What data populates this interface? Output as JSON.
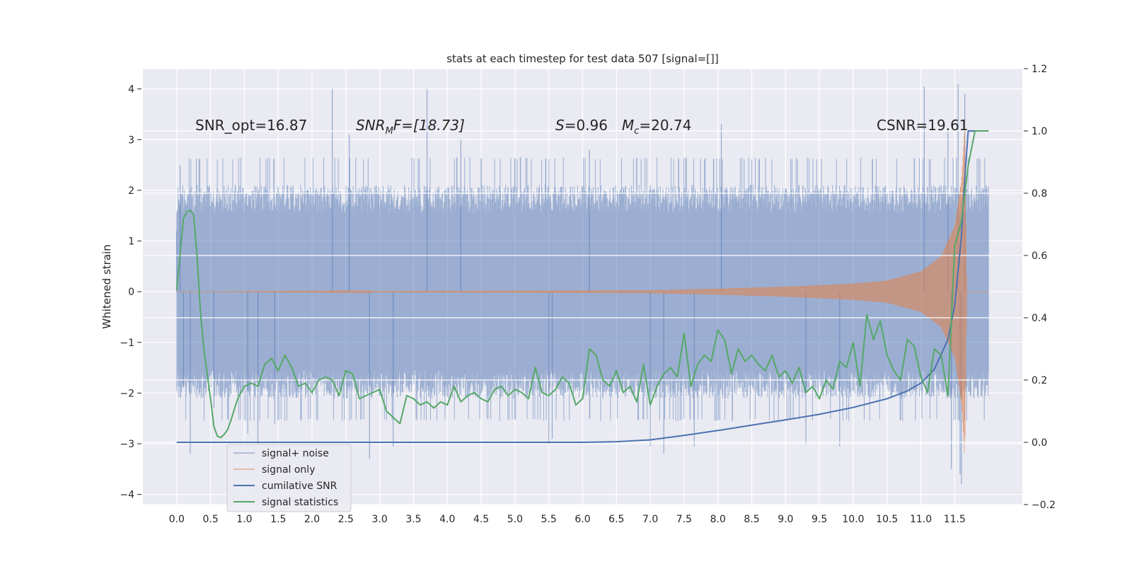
{
  "chart_data": {
    "type": "line",
    "title": "stats at each timestep for test data 507 [signal=[]]",
    "xlabel": "",
    "ylabel": "Whitened strain",
    "y2label": "",
    "xlim": [
      -0.5,
      12.5
    ],
    "ylim": [
      -4.2,
      4.4
    ],
    "y2lim": [
      -0.2,
      1.2
    ],
    "x_ticks": [
      "0.0",
      "0.5",
      "1.0",
      "1.5",
      "2.0",
      "2.5",
      "3.0",
      "3.5",
      "4.0",
      "4.5",
      "5.0",
      "5.5",
      "6.0",
      "6.5",
      "7.0",
      "7.5",
      "8.0",
      "8.5",
      "9.0",
      "9.5",
      "10.0",
      "10.5",
      "11.0",
      "11.5"
    ],
    "y_ticks": [
      "−4",
      "−3",
      "−2",
      "−1",
      "0",
      "1",
      "2",
      "3",
      "4"
    ],
    "y2_ticks": [
      "−0.2",
      "0.0",
      "0.2",
      "0.4",
      "0.6",
      "0.8",
      "1.0",
      "1.2"
    ],
    "grid": true,
    "legend_position": "lower-left",
    "annotations": {
      "snr_opt": "SNR_opt=16.87",
      "snr_mf_sym": "SNR",
      "snr_mf_sub": "M",
      "snr_mf_rest": "F=[18.73]",
      "s_sym": "S",
      "s_val": "=0.96",
      "mc_sym": "M",
      "mc_sub": "c",
      "mc_val": "=20.74",
      "csnr": "CSNR=19.61"
    },
    "series": [
      {
        "name": "signal+ noise",
        "axis": "left",
        "color": "#4c72b0",
        "t_range": [
          0.0,
          12.0
        ],
        "envelope_mean": 1.85,
        "envelope_spread": 0.3,
        "spikes": [
          {
            "x": 0.0,
            "y": 1.2
          },
          {
            "x": 0.05,
            "y": 2.5
          },
          {
            "x": 0.1,
            "y": -1.9
          },
          {
            "x": 0.2,
            "y": -3.2
          },
          {
            "x": 0.55,
            "y": -2.3
          },
          {
            "x": 1.05,
            "y": -2.8
          },
          {
            "x": 1.2,
            "y": -3.0
          },
          {
            "x": 1.45,
            "y": -2.6
          },
          {
            "x": 2.3,
            "y": 4.0
          },
          {
            "x": 2.55,
            "y": 3.1
          },
          {
            "x": 2.85,
            "y": -3.3
          },
          {
            "x": 3.2,
            "y": -3.05
          },
          {
            "x": 3.7,
            "y": 4.0
          },
          {
            "x": 4.2,
            "y": 3.0
          },
          {
            "x": 5.5,
            "y": -3.0
          },
          {
            "x": 5.55,
            "y": -2.9
          },
          {
            "x": 6.1,
            "y": 2.8
          },
          {
            "x": 7.0,
            "y": -3.05
          },
          {
            "x": 7.2,
            "y": -3.2
          },
          {
            "x": 7.65,
            "y": -3.05
          },
          {
            "x": 8.05,
            "y": 3.3
          },
          {
            "x": 9.3,
            "y": -3.0
          },
          {
            "x": 9.8,
            "y": -3.05
          },
          {
            "x": 11.05,
            "y": 4.05
          },
          {
            "x": 11.4,
            "y": 3.15
          },
          {
            "x": 11.55,
            "y": 4.1
          },
          {
            "x": 11.6,
            "y": -3.8
          },
          {
            "x": 11.58,
            "y": -3.6
          },
          {
            "x": 11.45,
            "y": -3.5
          },
          {
            "x": 11.65,
            "y": 3.9
          }
        ]
      },
      {
        "name": "signal only",
        "axis": "left",
        "color": "#dd8452",
        "t_range": [
          0.0,
          12.0
        ],
        "amplitude_points": [
          [
            0.0,
            0.0
          ],
          [
            7.0,
            0.03
          ],
          [
            8.0,
            0.06
          ],
          [
            9.0,
            0.1
          ],
          [
            10.0,
            0.16
          ],
          [
            10.5,
            0.22
          ],
          [
            11.0,
            0.4
          ],
          [
            11.3,
            0.7
          ],
          [
            11.5,
            1.3
          ],
          [
            11.6,
            2.2
          ],
          [
            11.65,
            3.3
          ],
          [
            11.68,
            0.0
          ],
          [
            12.0,
            0.0
          ]
        ]
      },
      {
        "name": "cumilative SNR",
        "axis": "right",
        "color": "#4c72b0",
        "x": [
          0.0,
          6.0,
          6.5,
          7.0,
          7.5,
          8.0,
          8.5,
          9.0,
          9.5,
          10.0,
          10.5,
          10.8,
          11.0,
          11.2,
          11.4,
          11.5,
          11.6,
          11.65,
          11.7,
          12.0
        ],
        "values": [
          0.0,
          0.0,
          0.002,
          0.008,
          0.022,
          0.038,
          0.055,
          0.072,
          0.09,
          0.112,
          0.14,
          0.165,
          0.19,
          0.235,
          0.33,
          0.44,
          0.66,
          0.85,
          1.0,
          1.0
        ]
      },
      {
        "name": "signal statistics",
        "axis": "right",
        "color": "#55a868",
        "x": [
          0.0,
          0.1,
          0.15,
          0.2,
          0.25,
          0.3,
          0.35,
          0.4,
          0.5,
          0.55,
          0.6,
          0.65,
          0.7,
          0.75,
          0.8,
          0.9,
          1.0,
          1.1,
          1.2,
          1.3,
          1.4,
          1.5,
          1.6,
          1.7,
          1.8,
          1.9,
          2.0,
          2.1,
          2.2,
          2.3,
          2.4,
          2.5,
          2.6,
          2.7,
          2.8,
          2.9,
          3.0,
          3.1,
          3.2,
          3.3,
          3.4,
          3.5,
          3.6,
          3.7,
          3.8,
          3.9,
          4.0,
          4.1,
          4.2,
          4.3,
          4.4,
          4.5,
          4.6,
          4.7,
          4.8,
          4.9,
          5.0,
          5.1,
          5.2,
          5.3,
          5.4,
          5.5,
          5.6,
          5.7,
          5.8,
          5.9,
          6.0,
          6.1,
          6.2,
          6.3,
          6.4,
          6.5,
          6.6,
          6.7,
          6.8,
          6.9,
          7.0,
          7.1,
          7.2,
          7.3,
          7.4,
          7.5,
          7.6,
          7.7,
          7.8,
          7.9,
          8.0,
          8.1,
          8.2,
          8.3,
          8.4,
          8.5,
          8.6,
          8.7,
          8.8,
          8.9,
          9.0,
          9.1,
          9.2,
          9.3,
          9.4,
          9.5,
          9.6,
          9.7,
          9.8,
          9.9,
          10.0,
          10.1,
          10.2,
          10.3,
          10.4,
          10.5,
          10.6,
          10.7,
          10.8,
          10.9,
          11.0,
          11.1,
          11.2,
          11.3,
          11.4,
          11.5,
          11.6,
          11.7,
          11.8,
          11.9,
          12.0
        ],
        "values": [
          0.49,
          0.72,
          0.74,
          0.745,
          0.73,
          0.6,
          0.42,
          0.3,
          0.14,
          0.05,
          0.02,
          0.015,
          0.025,
          0.04,
          0.07,
          0.14,
          0.18,
          0.19,
          0.18,
          0.25,
          0.27,
          0.23,
          0.28,
          0.24,
          0.18,
          0.19,
          0.16,
          0.2,
          0.21,
          0.2,
          0.15,
          0.23,
          0.22,
          0.14,
          0.15,
          0.16,
          0.17,
          0.1,
          0.08,
          0.06,
          0.15,
          0.14,
          0.12,
          0.13,
          0.11,
          0.13,
          0.12,
          0.18,
          0.13,
          0.15,
          0.16,
          0.14,
          0.13,
          0.17,
          0.18,
          0.15,
          0.17,
          0.16,
          0.14,
          0.24,
          0.16,
          0.15,
          0.17,
          0.21,
          0.19,
          0.12,
          0.14,
          0.3,
          0.28,
          0.2,
          0.18,
          0.23,
          0.16,
          0.18,
          0.13,
          0.25,
          0.12,
          0.18,
          0.22,
          0.24,
          0.21,
          0.35,
          0.18,
          0.25,
          0.28,
          0.26,
          0.36,
          0.33,
          0.22,
          0.3,
          0.26,
          0.28,
          0.25,
          0.23,
          0.28,
          0.21,
          0.23,
          0.19,
          0.24,
          0.16,
          0.18,
          0.14,
          0.2,
          0.17,
          0.26,
          0.24,
          0.32,
          0.18,
          0.41,
          0.33,
          0.39,
          0.28,
          0.23,
          0.2,
          0.33,
          0.31,
          0.21,
          0.16,
          0.3,
          0.28,
          0.15,
          0.63,
          0.71,
          0.89,
          1.0,
          1.0,
          1.0
        ]
      }
    ]
  }
}
